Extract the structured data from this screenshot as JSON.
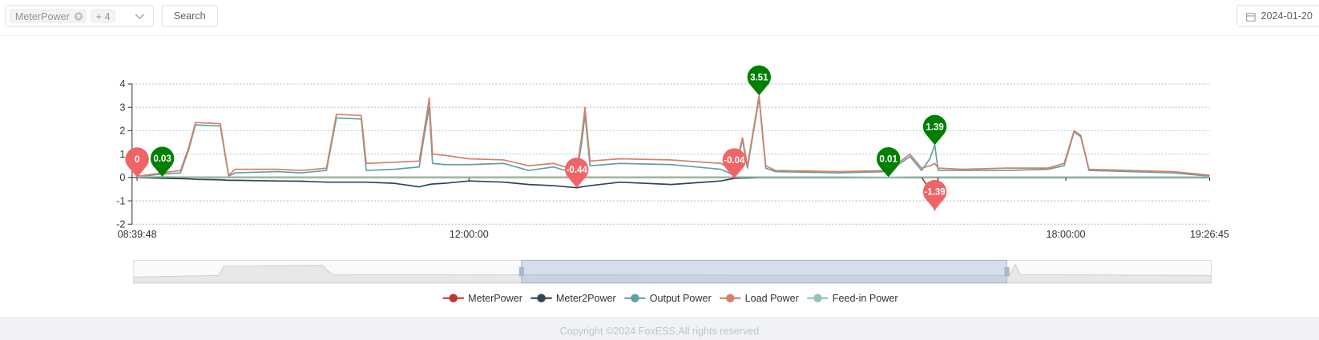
{
  "toolbar": {
    "select_tag": "MeterPower",
    "more_tag": "+ 4",
    "search_button": "Search",
    "date": "2024-01-20"
  },
  "chart_data": {
    "type": "line",
    "x": [
      "08:39:48",
      "08:55",
      "09:06",
      "09:11",
      "09:15",
      "09:30",
      "09:35",
      "09:39",
      "10:04",
      "10:19",
      "10:34",
      "10:40",
      "10:55",
      "10:58",
      "11:15",
      "11:30",
      "11:33",
      "11:36",
      "11:38",
      "11:45",
      "12:00",
      "12:21",
      "12:36",
      "12:51",
      "13:05",
      "13:08",
      "13:10",
      "13:13",
      "13:31",
      "14:02",
      "14:32",
      "14:40",
      "14:45",
      "14:48",
      "14:55",
      "14:59",
      "15:05",
      "15:43",
      "16:13",
      "16:26",
      "16:33",
      "16:38",
      "16:41",
      "16:43",
      "16:58",
      "17:24",
      "17:49",
      "17:59",
      "18:05",
      "18:09",
      "18:14",
      "18:39",
      "19:05",
      "19:26:45"
    ],
    "xlim": [
      "08:39:48",
      "19:26:45"
    ],
    "xticks": [
      "08:39:48",
      "12:00:00",
      "18:00:00",
      "19:26:45"
    ],
    "ylim": [
      -2,
      4
    ],
    "yticks": [
      -2,
      -1,
      0,
      1,
      2,
      3,
      4
    ],
    "grid": true,
    "series": [
      {
        "name": "MeterPower",
        "color": "#c23531",
        "values": [
          0,
          0,
          0,
          0,
          0,
          0,
          0,
          0,
          0,
          0,
          0,
          0,
          0,
          0,
          0,
          0,
          0,
          0,
          0,
          0,
          0,
          0,
          0,
          0,
          0,
          0,
          0,
          0,
          0,
          0,
          0,
          0,
          0,
          0,
          0,
          0,
          0,
          0,
          0,
          0,
          0,
          -0.5,
          -1.39,
          0,
          0,
          0,
          0,
          0,
          0,
          0,
          0,
          0,
          0,
          0
        ]
      },
      {
        "name": "Meter2Power",
        "color": "#2f4554",
        "values": [
          0,
          -0.03,
          -0.05,
          -0.06,
          -0.08,
          -0.1,
          -0.12,
          -0.12,
          -0.15,
          -0.16,
          -0.2,
          -0.2,
          -0.2,
          -0.2,
          -0.25,
          -0.4,
          -0.35,
          -0.3,
          -0.28,
          -0.25,
          -0.15,
          -0.2,
          -0.3,
          -0.35,
          -0.44,
          -0.4,
          -0.38,
          -0.35,
          -0.2,
          -0.3,
          -0.15,
          -0.04,
          -0.02,
          -0.02,
          0,
          0,
          0,
          0,
          0,
          0,
          0,
          0,
          0,
          0,
          0,
          0,
          0,
          0,
          0,
          0,
          0,
          0,
          0,
          0
        ]
      },
      {
        "name": "Output Power",
        "color": "#61a0a8",
        "values": [
          0.03,
          0.15,
          0.2,
          1.2,
          2.25,
          2.2,
          0.05,
          0.2,
          0.25,
          0.2,
          0.3,
          2.55,
          2.5,
          0.3,
          0.35,
          0.45,
          1.8,
          3.0,
          0.6,
          0.55,
          0.55,
          0.6,
          0.3,
          0.45,
          0.15,
          1.5,
          2.7,
          0.5,
          0.6,
          0.55,
          0.35,
          0.1,
          1.6,
          0.4,
          3.4,
          0.4,
          0.25,
          0.2,
          0.25,
          0.9,
          0.3,
          0.8,
          1.39,
          0.3,
          0.3,
          0.3,
          0.35,
          0.5,
          1.95,
          1.75,
          0.3,
          0.25,
          0.2,
          0.05
        ]
      },
      {
        "name": "Load Power",
        "color": "#d48265",
        "values": [
          0.05,
          0.2,
          0.3,
          1.3,
          2.35,
          2.3,
          0.1,
          0.35,
          0.35,
          0.3,
          0.4,
          2.7,
          2.65,
          0.6,
          0.65,
          0.7,
          2.0,
          3.4,
          1.0,
          0.95,
          0.8,
          0.75,
          0.5,
          0.6,
          0.3,
          1.8,
          3.0,
          0.7,
          0.8,
          0.75,
          0.6,
          0.25,
          1.7,
          0.5,
          3.51,
          0.5,
          0.3,
          0.25,
          0.3,
          1.0,
          0.4,
          0.5,
          0.6,
          0.4,
          0.35,
          0.4,
          0.4,
          0.6,
          2.0,
          1.8,
          0.35,
          0.3,
          0.25,
          0.1
        ]
      },
      {
        "name": "Feed-in Power",
        "color": "#91c7ae",
        "values": [
          0.02,
          0.03,
          0.02,
          0.02,
          0.02,
          0.02,
          0.02,
          0.02,
          0.02,
          0.02,
          0.02,
          0.02,
          0.02,
          0.02,
          0.02,
          0.02,
          0.02,
          0.02,
          0.02,
          0.02,
          0.02,
          0.02,
          0.02,
          0.02,
          0.02,
          0.02,
          0.02,
          0.02,
          0.02,
          0.02,
          0.02,
          0.02,
          0.02,
          0.02,
          0.02,
          0.02,
          0.02,
          0.02,
          0.01,
          0.02,
          0.02,
          0.02,
          0.02,
          0.02,
          0.02,
          0.02,
          0.02,
          0.02,
          0.02,
          0.02,
          0.02,
          0.02,
          0.02,
          0.02
        ]
      }
    ],
    "markers": [
      {
        "x": "08:39:48",
        "value": 0,
        "color": "#ef6567"
      },
      {
        "x": "08:55",
        "value": 0.03,
        "color": "#008000"
      },
      {
        "x": "13:05",
        "value": -0.44,
        "color": "#ef6567"
      },
      {
        "x": "14:40",
        "value": -0.04,
        "color": "#ef6567"
      },
      {
        "x": "14:55",
        "value": 3.51,
        "color": "#008000"
      },
      {
        "x": "16:13",
        "value": 0.01,
        "color": "#008000"
      },
      {
        "x": "16:41",
        "value": 1.39,
        "color": "#008000"
      },
      {
        "x": "16:41",
        "value": -1.39,
        "color": "#ef6567"
      }
    ]
  },
  "footer": {
    "copyright": "Copyright ©2024 FoxESS,All rights reserved"
  }
}
